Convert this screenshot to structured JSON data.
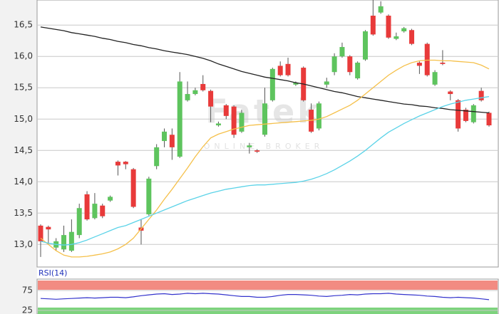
{
  "chart_data": [
    {
      "type": "candlestick",
      "watermark": "Fatek",
      "watermark_subtitle": "ONLINE BROKER",
      "up_color": "#5ec45e",
      "down_color": "#e83a3a",
      "wick_color": "#555555",
      "ylim": [
        12.64,
        16.9
      ],
      "yticks": [
        {
          "value": 13.0,
          "label": "13,0"
        },
        {
          "value": 13.5,
          "label": "13,5"
        },
        {
          "value": 14.0,
          "label": "14,0"
        },
        {
          "value": 14.5,
          "label": "14,5"
        },
        {
          "value": 15.0,
          "label": "15,0"
        },
        {
          "value": 15.5,
          "label": "15,5"
        },
        {
          "value": 16.0,
          "label": "16,0"
        },
        {
          "value": 16.5,
          "label": "16,5"
        }
      ],
      "grid": true,
      "open": [
        13.3,
        13.28,
        12.95,
        12.92,
        12.9,
        13.15,
        13.8,
        13.42,
        13.62,
        13.7,
        14.32,
        14.32,
        14.2,
        13.27,
        13.48,
        14.25,
        14.65,
        14.75,
        14.4,
        15.3,
        15.4,
        15.56,
        15.45,
        14.9,
        15.22,
        15.2,
        14.8,
        14.55,
        14.5,
        14.75,
        15.3,
        15.85,
        15.88,
        15.55,
        15.82,
        15.15,
        14.85,
        15.55,
        15.75,
        16.0,
        16.0,
        15.65,
        15.95,
        16.65,
        16.7,
        16.65,
        16.28,
        16.4,
        16.42,
        15.9,
        16.2,
        15.55,
        15.9,
        15.44,
        15.3,
        15.15,
        14.95,
        15.45,
        15.1
      ],
      "high": [
        13.32,
        13.3,
        13.1,
        13.3,
        13.4,
        13.65,
        13.85,
        13.82,
        13.65,
        13.78,
        14.34,
        14.33,
        14.22,
        13.4,
        14.08,
        14.6,
        14.85,
        14.85,
        15.75,
        15.6,
        15.5,
        15.7,
        15.47,
        14.96,
        15.24,
        15.22,
        15.15,
        14.62,
        14.52,
        15.5,
        15.82,
        15.92,
        15.98,
        15.6,
        15.84,
        15.25,
        15.28,
        15.66,
        16.05,
        16.22,
        16.02,
        15.92,
        16.42,
        16.9,
        16.88,
        16.67,
        16.38,
        16.47,
        16.44,
        15.92,
        16.22,
        15.78,
        16.1,
        15.46,
        15.32,
        15.18,
        15.24,
        15.5,
        15.12
      ],
      "low": [
        12.8,
        13.0,
        12.9,
        12.88,
        12.88,
        13.1,
        13.38,
        13.4,
        13.42,
        13.68,
        14.1,
        14.2,
        13.58,
        13.0,
        13.46,
        14.2,
        14.55,
        14.35,
        14.38,
        15.28,
        15.38,
        15.44,
        14.95,
        14.88,
        15.0,
        14.7,
        14.78,
        14.45,
        14.46,
        14.72,
        15.28,
        15.68,
        15.68,
        15.53,
        15.28,
        14.78,
        14.82,
        15.5,
        15.7,
        15.98,
        15.7,
        15.63,
        15.93,
        16.33,
        16.68,
        16.28,
        16.26,
        16.38,
        16.18,
        15.72,
        15.68,
        15.53,
        15.86,
        15.3,
        14.8,
        14.95,
        14.93,
        15.28,
        14.88
      ],
      "close": [
        13.05,
        13.24,
        13.05,
        13.15,
        13.2,
        13.58,
        13.4,
        13.65,
        13.45,
        13.76,
        14.26,
        14.28,
        13.6,
        13.22,
        14.05,
        14.55,
        14.8,
        14.55,
        15.6,
        15.4,
        15.46,
        15.46,
        15.2,
        14.93,
        15.05,
        14.75,
        15.1,
        14.58,
        14.48,
        15.25,
        15.8,
        15.7,
        15.7,
        15.58,
        15.3,
        14.8,
        15.25,
        15.6,
        16.0,
        16.15,
        15.75,
        15.9,
        16.4,
        16.35,
        16.8,
        16.3,
        16.32,
        16.45,
        16.2,
        15.85,
        15.7,
        15.75,
        15.88,
        15.4,
        14.85,
        14.97,
        15.22,
        15.3,
        14.9
      ],
      "series": [
        {
          "color": "#222222",
          "values": [
            16.47,
            16.45,
            16.43,
            16.41,
            16.38,
            16.36,
            16.34,
            16.32,
            16.29,
            16.27,
            16.24,
            16.22,
            16.19,
            16.17,
            16.14,
            16.12,
            16.09,
            16.07,
            16.05,
            16.03,
            16.0,
            15.97,
            15.93,
            15.88,
            15.84,
            15.8,
            15.76,
            15.73,
            15.7,
            15.67,
            15.65,
            15.63,
            15.61,
            15.58,
            15.56,
            15.53,
            15.5,
            15.47,
            15.44,
            15.42,
            15.39,
            15.36,
            15.34,
            15.32,
            15.3,
            15.28,
            15.26,
            15.24,
            15.23,
            15.21,
            15.2,
            15.18,
            15.17,
            15.15,
            15.14,
            15.13,
            15.12,
            15.11,
            15.1
          ]
        },
        {
          "color": "#f5c04a",
          "values": [
            13.1,
            13.0,
            12.9,
            12.83,
            12.8,
            12.8,
            12.81,
            12.83,
            12.85,
            12.88,
            12.93,
            13.0,
            13.1,
            13.25,
            13.4,
            13.55,
            13.72,
            13.88,
            14.05,
            14.22,
            14.4,
            14.56,
            14.7,
            14.76,
            14.8,
            14.84,
            14.87,
            14.9,
            14.91,
            14.92,
            14.93,
            14.94,
            14.95,
            14.96,
            14.97,
            14.98,
            15.0,
            15.04,
            15.1,
            15.16,
            15.22,
            15.3,
            15.4,
            15.5,
            15.6,
            15.7,
            15.78,
            15.85,
            15.9,
            15.93,
            15.94,
            15.94,
            15.93,
            15.93,
            15.92,
            15.91,
            15.9,
            15.86,
            15.8
          ]
        },
        {
          "color": "#5bd3e8",
          "values": [
            13.05,
            13.02,
            13.0,
            12.99,
            13.0,
            13.03,
            13.07,
            13.12,
            13.17,
            13.22,
            13.27,
            13.3,
            13.35,
            13.4,
            13.45,
            13.5,
            13.55,
            13.6,
            13.65,
            13.7,
            13.74,
            13.78,
            13.82,
            13.85,
            13.88,
            13.9,
            13.92,
            13.94,
            13.95,
            13.95,
            13.96,
            13.97,
            13.98,
            13.99,
            14.01,
            14.04,
            14.08,
            14.13,
            14.19,
            14.26,
            14.33,
            14.41,
            14.5,
            14.6,
            14.7,
            14.79,
            14.86,
            14.93,
            14.99,
            15.05,
            15.1,
            15.15,
            15.2,
            15.24,
            15.27,
            15.3,
            15.32,
            15.34,
            15.36
          ]
        }
      ]
    },
    {
      "type": "line",
      "title": "RSI(14)",
      "ylim": [
        16,
        100
      ],
      "yticks": [
        75,
        25
      ],
      "upper_band_color": "#f28b82",
      "lower_band_color": "#7dd37d",
      "series": [
        {
          "color": "#3333cc",
          "values": [
            55,
            54,
            53,
            54,
            55,
            56,
            57,
            56,
            57,
            58,
            58,
            57,
            59,
            62,
            64,
            66,
            67,
            65,
            66,
            68,
            67,
            68,
            67,
            66,
            64,
            62,
            60,
            60,
            58,
            58,
            60,
            63,
            65,
            65,
            64,
            63,
            61,
            60,
            62,
            63,
            65,
            64,
            66,
            67,
            67,
            68,
            66,
            65,
            64,
            63,
            61,
            60,
            58,
            57,
            58,
            57,
            56,
            54,
            52
          ]
        }
      ]
    }
  ]
}
